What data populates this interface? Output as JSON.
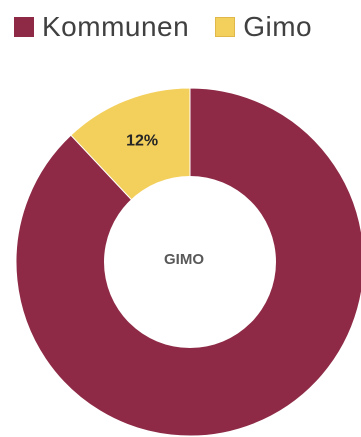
{
  "chart_data": {
    "type": "pie",
    "variant": "donut",
    "title": "",
    "center_label": "GIMO",
    "series": [
      {
        "name": "Kommunen",
        "value": 88,
        "color": "#8e2a46",
        "label": ""
      },
      {
        "name": "Gimo",
        "value": 12,
        "color": "#f3cf5c",
        "label": "12%"
      }
    ],
    "legend_position": "top-left"
  }
}
